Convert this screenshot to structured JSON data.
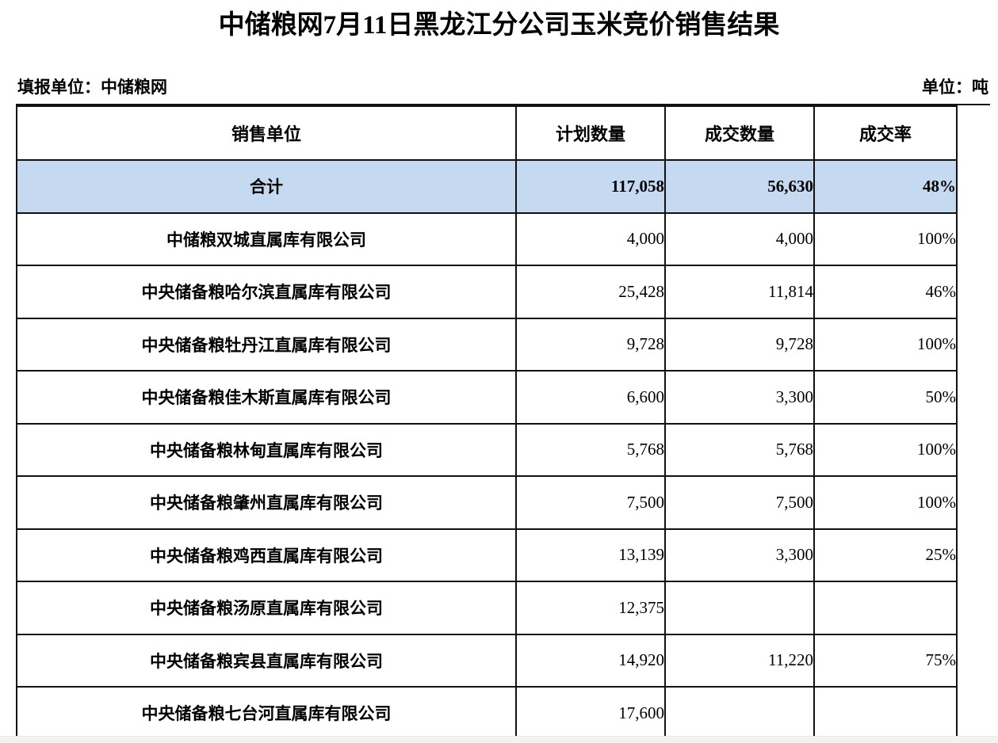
{
  "page": {
    "title": "中储粮网7月11日黑龙江分公司玉米竞价销售结果",
    "reporting_unit_label": "填报单位：中储粮网",
    "unit_label": "单位：吨"
  },
  "table": {
    "columns": [
      "销售单位",
      "计划数量",
      "成交数量",
      "成交率"
    ],
    "total_row_bg": "#C5D9F1",
    "total_row": {
      "name": "合计",
      "planned": "117,058",
      "traded": "56,630",
      "rate": "48%"
    },
    "rows": [
      {
        "name": "中储粮双城直属库有限公司",
        "planned": "4,000",
        "traded": "4,000",
        "rate": "100%"
      },
      {
        "name": "中央储备粮哈尔滨直属库有限公司",
        "planned": "25,428",
        "traded": "11,814",
        "rate": "46%"
      },
      {
        "name": "中央储备粮牡丹江直属库有限公司",
        "planned": "9,728",
        "traded": "9,728",
        "rate": "100%"
      },
      {
        "name": "中央储备粮佳木斯直属库有限公司",
        "planned": "6,600",
        "traded": "3,300",
        "rate": "50%"
      },
      {
        "name": "中央储备粮林甸直属库有限公司",
        "planned": "5,768",
        "traded": "5,768",
        "rate": "100%"
      },
      {
        "name": "中央储备粮肇州直属库有限公司",
        "planned": "7,500",
        "traded": "7,500",
        "rate": "100%"
      },
      {
        "name": "中央储备粮鸡西直属库有限公司",
        "planned": "13,139",
        "traded": "3,300",
        "rate": "25%"
      },
      {
        "name": "中央储备粮汤原直属库有限公司",
        "planned": "12,375",
        "traded": "",
        "rate": ""
      },
      {
        "name": "中央储备粮宾县直属库有限公司",
        "planned": "14,920",
        "traded": "11,220",
        "rate": "75%"
      },
      {
        "name": "中央储备粮七台河直属库有限公司",
        "planned": "17,600",
        "traded": "",
        "rate": ""
      }
    ]
  }
}
